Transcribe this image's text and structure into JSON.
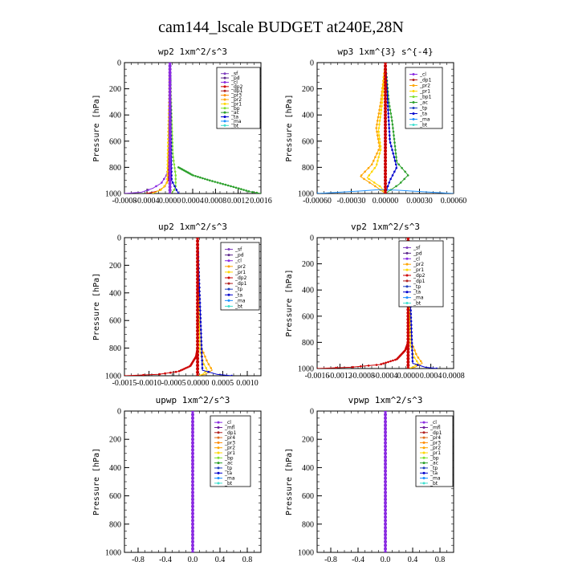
{
  "suptitle": "cam144_lscale  BUDGET at240E,28N",
  "panels": [
    {
      "title": "wp2   1xm^2/s^3",
      "ylabel": "Pressure [hPa]",
      "xticks": [
        "-0.0008",
        "-0.0004",
        "0.0000",
        "0.0004",
        "0.0008",
        "0.0012",
        "0.0016"
      ],
      "yticks": [
        "0",
        "200",
        "400",
        "600",
        "800",
        "1000"
      ],
      "legend": [
        "_sf",
        "_pd",
        "_cl",
        "_dp2",
        "_dp1",
        "_pr3",
        "_pr2",
        "_pr1",
        "_bp",
        "_ac",
        "_ta",
        "_ma",
        "_bt"
      ]
    },
    {
      "title": "wp3   1xm^{3} s^{-4}",
      "ylabel": "Pressure [hPa]",
      "xticks": [
        "-0.00060",
        "-0.00030",
        "0.00000",
        "0.00030",
        "0.00060"
      ],
      "yticks": [
        "0",
        "200",
        "400",
        "600",
        "800",
        "1000"
      ],
      "legend": [
        "_cl",
        "_dp1",
        "_pr2",
        "_pr1",
        "_bp1",
        "_ac",
        "_tp",
        "_ta",
        "_ma",
        "_bt"
      ]
    },
    {
      "title": "up2   1xm^2/s^3",
      "ylabel": "Pressure [hPa]",
      "xticks": [
        "-0.0015",
        "-0.0010",
        "-0.0005",
        "0.0000",
        "0.0005",
        "0.0010"
      ],
      "yticks": [
        "0",
        "200",
        "400",
        "600",
        "800",
        "1000"
      ],
      "legend": [
        "_sf",
        "_pd",
        "_cl",
        "_pr2",
        "_pr1",
        "_dp2",
        "_dp1",
        "_tp",
        "_ta",
        "_ma",
        "_bt"
      ]
    },
    {
      "title": "vp2   1xm^2/s^3",
      "ylabel": "Pressure [hPa]",
      "xticks": [
        "-0.0016",
        "-0.0012",
        "-0.0008",
        "-0.0004",
        "0.0000",
        "0.0004",
        "0.0008"
      ],
      "yticks": [
        "0",
        "200",
        "400",
        "600",
        "800",
        "1000"
      ],
      "legend": [
        "_sf",
        "_pd",
        "_cl",
        "_pr2",
        "_pr1",
        "_dp2",
        "_dp1",
        "_tp",
        "_ta",
        "_ma",
        "_bt"
      ]
    },
    {
      "title": "upwp   1xm^2/s^3",
      "ylabel": "Pressure [hPa]",
      "xticks": [
        "-0.8",
        "-0.4",
        "0.0",
        "0.4",
        "0.8"
      ],
      "yticks": [
        "0",
        "200",
        "400",
        "600",
        "800",
        "1000"
      ],
      "legend": [
        "_cl",
        "_mfl",
        "_dp1",
        "_pr4",
        "_pr3",
        "_pr2",
        "_pr1",
        "_bp",
        "_ac",
        "_tp",
        "_ta",
        "_ma",
        "_bt"
      ]
    },
    {
      "title": "vpwp   1xm^2/s^3",
      "ylabel": "Pressure [hPa]",
      "xticks": [
        "-0.8",
        "-0.4",
        "0.0",
        "0.4",
        "0.8"
      ],
      "yticks": [
        "0",
        "200",
        "400",
        "600",
        "800",
        "1000"
      ],
      "legend": [
        "_cl",
        "_mfl",
        "_dp1",
        "_pr4",
        "_pr3",
        "_pr2",
        "_pr1",
        "_bp",
        "_ac",
        "_tp",
        "_ta",
        "_ma",
        "_bt"
      ]
    }
  ],
  "colors": {
    "_sf": "#7f3fbf",
    "_pd": "#5e2a8c",
    "_cl": "#8a2be2",
    "_mfl": "#6a1b9a",
    "_dp2": "#cc0000",
    "_dp1": "#b22222",
    "_pr4": "#e07020",
    "_pr3": "#ff8c00",
    "_pr2": "#ffa500",
    "_pr1": "#ffd700",
    "_bp": "#7fdf2f",
    "_bp1": "#7fdf2f",
    "_ac": "#2ca02c",
    "_tp": "#1f3fbf",
    "_ta": "#0000cd",
    "_ma": "#1e90ff",
    "_bt": "#40e0d0"
  },
  "chart_data": [
    {
      "type": "line",
      "title": "wp2   1xm^2/s^3",
      "ylabel": "Pressure [hPa]",
      "xlim": [
        -0.0008,
        0.0016
      ],
      "ylim": [
        1000,
        0
      ],
      "grid": false,
      "legend_position": "top-right",
      "series": [
        {
          "name": "_cl",
          "x": [
            -0.0008,
            -0.0005,
            -0.0003,
            -0.00015,
            -6e-05,
            -2e-05,
            0.0
          ],
          "y": [
            1000,
            990,
            960,
            920,
            860,
            780,
            0
          ]
        },
        {
          "name": "_dp2",
          "x": [
            -0.0004,
            -0.0002,
            -0.0001,
            -3e-05,
            0.0
          ],
          "y": [
            1000,
            980,
            950,
            900,
            0
          ]
        },
        {
          "name": "_pr1",
          "x": [
            -0.0003,
            -0.00015,
            -5e-05,
            0.0
          ],
          "y": [
            1000,
            970,
            920,
            0
          ]
        },
        {
          "name": "_ac",
          "x": [
            0.00015,
            0.0004,
            0.0007,
            0.00095,
            0.0012,
            0.0014,
            0.0016
          ],
          "y": [
            800,
            860,
            900,
            930,
            960,
            985,
            1000
          ]
        },
        {
          "name": "_bp",
          "x": [
            0.0,
            5e-05,
            0.0001,
            0.0001,
            5e-05,
            0.0
          ],
          "y": [
            0,
            700,
            860,
            950,
            990,
            1000
          ]
        },
        {
          "name": "_ta",
          "x": [
            0.0,
            3e-05,
            0.0001,
            0.00015
          ],
          "y": [
            0,
            900,
            960,
            1000
          ]
        },
        {
          "name": "_sf",
          "x": [
            0.0,
            0.0
          ],
          "y": [
            0,
            1000
          ]
        }
      ]
    },
    {
      "type": "line",
      "title": "wp3   1xm^{3} s^{-4}",
      "ylabel": "Pressure [hPa]",
      "xlim": [
        -0.0006,
        0.0006
      ],
      "ylim": [
        1000,
        0
      ],
      "grid": false,
      "legend_position": "top-right",
      "series": [
        {
          "name": "_cl",
          "x": [
            0.0,
            0.0
          ],
          "y": [
            0,
            1000
          ]
        },
        {
          "name": "_pr2",
          "x": [
            0.0,
            -4e-05,
            -8e-05,
            -5e-05,
            -0.00012,
            -0.00022,
            -8e-05,
            0.0
          ],
          "y": [
            0,
            300,
            500,
            650,
            780,
            870,
            950,
            1000
          ]
        },
        {
          "name": "_pr1",
          "x": [
            0.0,
            -3e-05,
            -6e-05,
            -4e-05,
            -8e-05,
            -0.00016,
            -4e-05,
            0.0
          ],
          "y": [
            0,
            320,
            520,
            660,
            790,
            880,
            950,
            1000
          ]
        },
        {
          "name": "_ac",
          "x": [
            0.0,
            3e-05,
            6e-05,
            8e-05,
            0.0001,
            0.0002,
            0.00012,
            0.0
          ],
          "y": [
            0,
            300,
            450,
            600,
            760,
            860,
            930,
            1000
          ]
        },
        {
          "name": "_ta",
          "x": [
            0.0,
            4e-05,
            0.0001,
            4e-05,
            0.0
          ],
          "y": [
            0,
            600,
            800,
            900,
            1000
          ]
        },
        {
          "name": "_ma",
          "x": [
            -0.0006,
            -0.0004,
            -0.0002,
            -5e-05,
            0.0001,
            0.0004,
            0.0006
          ],
          "y": [
            1000,
            990,
            980,
            970,
            975,
            990,
            1000
          ]
        }
      ]
    },
    {
      "type": "line",
      "title": "up2   1xm^2/s^3",
      "ylabel": "Pressure [hPa]",
      "xlim": [
        -0.0015,
        0.0013
      ],
      "ylim": [
        1000,
        0
      ],
      "grid": false,
      "legend_position": "top-right",
      "series": [
        {
          "name": "_dp1",
          "x": [
            0.0,
            0.0
          ],
          "y": [
            0,
            1000
          ]
        },
        {
          "name": "_dp2",
          "x": [
            -0.0015,
            -0.0008,
            -0.0004,
            -0.00015,
            -3e-05,
            0.0
          ],
          "y": [
            1000,
            990,
            970,
            930,
            860,
            800
          ]
        },
        {
          "name": "_pr2",
          "x": [
            0.0,
            8e-05,
            0.0002,
            0.0003,
            0.00015,
            0.0
          ],
          "y": [
            0,
            800,
            900,
            960,
            990,
            1000
          ]
        },
        {
          "name": "_pr1",
          "x": [
            0.0,
            5e-05,
            0.00012,
            0.0002,
            0.0001,
            0.0
          ],
          "y": [
            0,
            820,
            910,
            960,
            990,
            1000
          ]
        },
        {
          "name": "_ta",
          "x": [
            0.0,
            0.0001,
            0.0004,
            0.0007
          ],
          "y": [
            0,
            960,
            990,
            1000
          ]
        },
        {
          "name": "_cl",
          "x": [
            0.0,
            0.0
          ],
          "y": [
            0,
            1000
          ]
        }
      ]
    },
    {
      "type": "line",
      "title": "vp2   1xm^2/s^3",
      "ylabel": "Pressure [hPa]",
      "xlim": [
        -0.0016,
        0.0008
      ],
      "ylim": [
        1000,
        0
      ],
      "grid": false,
      "legend_position": "top-right",
      "series": [
        {
          "name": "_dp1",
          "x": [
            0.0,
            0.0
          ],
          "y": [
            0,
            1000
          ]
        },
        {
          "name": "_dp2",
          "x": [
            -0.0016,
            -0.001,
            -0.0005,
            -0.0002,
            -5e-05,
            0.0
          ],
          "y": [
            1000,
            990,
            970,
            930,
            860,
            800
          ]
        },
        {
          "name": "_pr2",
          "x": [
            0.0,
            6e-05,
            0.00015,
            0.00025,
            0.00012,
            0.0
          ],
          "y": [
            0,
            800,
            900,
            960,
            990,
            1000
          ]
        },
        {
          "name": "_pr1",
          "x": [
            0.0,
            4e-05,
            0.0001,
            0.00018,
            8e-05,
            0.0
          ],
          "y": [
            0,
            820,
            910,
            960,
            990,
            1000
          ]
        },
        {
          "name": "_ta",
          "x": [
            0.0,
            8e-05,
            0.0003,
            0.0005
          ],
          "y": [
            0,
            960,
            990,
            1000
          ]
        },
        {
          "name": "_cl",
          "x": [
            0.0,
            0.0
          ],
          "y": [
            0,
            1000
          ]
        }
      ]
    },
    {
      "type": "line",
      "title": "upwp   1xm^2/s^3",
      "ylabel": "Pressure [hPa]",
      "xlim": [
        -1.0,
        1.0
      ],
      "ylim": [
        1000,
        0
      ],
      "grid": false,
      "legend_position": "top-right",
      "series": [
        {
          "name": "_cl",
          "x": [
            0.0,
            0.0
          ],
          "y": [
            0,
            1000
          ]
        },
        {
          "name": "_mfl",
          "x": [
            0.0,
            0.0
          ],
          "y": [
            0,
            1000
          ]
        }
      ]
    },
    {
      "type": "line",
      "title": "vpwp   1xm^2/s^3",
      "ylabel": "Pressure [hPa]",
      "xlim": [
        -1.0,
        1.0
      ],
      "ylim": [
        1000,
        0
      ],
      "grid": false,
      "legend_position": "top-right",
      "series": [
        {
          "name": "_cl",
          "x": [
            0.0,
            0.0
          ],
          "y": [
            0,
            1000
          ]
        },
        {
          "name": "_mfl",
          "x": [
            0.0,
            0.0
          ],
          "y": [
            0,
            1000
          ]
        }
      ]
    }
  ]
}
